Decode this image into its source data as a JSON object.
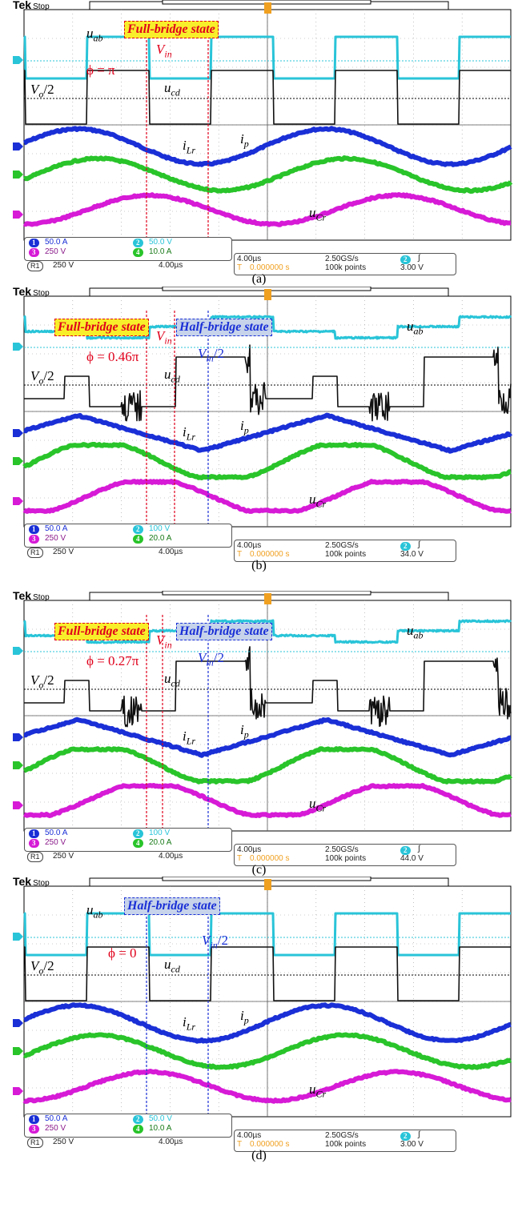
{
  "chart_data": [
    {
      "type": "line",
      "panel": "(a)",
      "title": "",
      "header": {
        "brand": "Tek",
        "status": "Stop"
      },
      "state_boxes": [
        "Full-bridge state"
      ],
      "annotations": {
        "uab": "u",
        "uab_sub": "ab",
        "ucd": "u",
        "ucd_sub": "cd",
        "vo": "V",
        "vo_sub": "o",
        "vo_tail": "/2",
        "vin": "V",
        "vin_sub": "in",
        "vin_tail": "",
        "phi": "ϕ = π",
        "ilr": "i",
        "ilr_sub": "Lr",
        "ip": "i",
        "ip_sub": "p",
        "ucr": "u",
        "ucr_sub": "Cr"
      },
      "series": [
        {
          "name": "u_ab",
          "channel": "2",
          "color": "#29c4d8",
          "scale": "50.0 V"
        },
        {
          "name": "u_cd",
          "channel": "R1",
          "color": "#111111",
          "scale": "250 V"
        },
        {
          "name": "i_p",
          "channel": "1",
          "color": "#1a2fd6",
          "scale": "50.0 A"
        },
        {
          "name": "i_Lr",
          "channel": "4",
          "color": "#29c42a",
          "scale": "10.0 A"
        },
        {
          "name": "u_Cr",
          "channel": "3",
          "color": "#d61ad6",
          "scale": "250 V"
        }
      ],
      "status": {
        "ch1": "50.0 A",
        "ch2": "50.0 V",
        "ch3": "250 V",
        "ch4": "10.0 A",
        "r1": "250 V",
        "r1_time": "4.00µs",
        "timebase": "4.00µs",
        "sample": "2.50GS/s",
        "trig_ch": "2",
        "trig_sym": "∫",
        "offset": "0.000000 s",
        "points": "100k points",
        "trig_level": "3.00 V"
      },
      "phase": 1.0,
      "mode": "full"
    },
    {
      "type": "line",
      "panel": "(b)",
      "title": "",
      "header": {
        "brand": "Tek",
        "status": "Stop"
      },
      "state_boxes": [
        "Full-bridge state",
        "Half-bridge state"
      ],
      "annotations": {
        "uab": "u",
        "uab_sub": "ab",
        "ucd": "u",
        "ucd_sub": "cd",
        "vo": "V",
        "vo_sub": "o",
        "vo_tail": "/2",
        "vin": "V",
        "vin_sub": "in",
        "vin_tail": "",
        "vin2": "V",
        "vin2_sub": "in",
        "vin2_tail": "/2",
        "phi": "ϕ = 0.46π",
        "ilr": "i",
        "ilr_sub": "Lr",
        "ip": "i",
        "ip_sub": "p",
        "ucr": "u",
        "ucr_sub": "Cr"
      },
      "series": [
        {
          "name": "u_ab",
          "channel": "2",
          "color": "#29c4d8",
          "scale": "100 V"
        },
        {
          "name": "u_cd",
          "channel": "R1",
          "color": "#111111",
          "scale": "250 V"
        },
        {
          "name": "i_p",
          "channel": "1",
          "color": "#1a2fd6",
          "scale": "50.0 A"
        },
        {
          "name": "i_Lr",
          "channel": "4",
          "color": "#29c42a",
          "scale": "20.0 A"
        },
        {
          "name": "u_Cr",
          "channel": "3",
          "color": "#d61ad6",
          "scale": "250 V"
        }
      ],
      "status": {
        "ch1": "50.0 A",
        "ch2": "100 V",
        "ch3": "250 V",
        "ch4": "20.0 A",
        "r1": "250 V",
        "r1_time": "4.00µs",
        "timebase": "4.00µs",
        "sample": "2.50GS/s",
        "trig_ch": "2",
        "trig_sym": "∫",
        "offset": "0.000000 s",
        "points": "100k points",
        "trig_level": "34.0 V"
      },
      "phase": 0.46,
      "mode": "mixed"
    },
    {
      "type": "line",
      "panel": "(c)",
      "title": "",
      "header": {
        "brand": "Tek",
        "status": "Stop"
      },
      "state_boxes": [
        "Full-bridge state",
        "Half-bridge state"
      ],
      "annotations": {
        "uab": "u",
        "uab_sub": "ab",
        "ucd": "u",
        "ucd_sub": "cd",
        "vo": "V",
        "vo_sub": "o",
        "vo_tail": "/2",
        "vin": "V",
        "vin_sub": "in",
        "vin_tail": "",
        "vin2": "V",
        "vin2_sub": "in",
        "vin2_tail": "/2",
        "phi": "ϕ = 0.27π",
        "ilr": "i",
        "ilr_sub": "Lr",
        "ip": "i",
        "ip_sub": "p",
        "ucr": "u",
        "ucr_sub": "Cr"
      },
      "series": [
        {
          "name": "u_ab",
          "channel": "2",
          "color": "#29c4d8",
          "scale": "100 V"
        },
        {
          "name": "u_cd",
          "channel": "R1",
          "color": "#111111",
          "scale": "250 V"
        },
        {
          "name": "i_p",
          "channel": "1",
          "color": "#1a2fd6",
          "scale": "50.0 A"
        },
        {
          "name": "i_Lr",
          "channel": "4",
          "color": "#29c42a",
          "scale": "20.0 A"
        },
        {
          "name": "u_Cr",
          "channel": "3",
          "color": "#d61ad6",
          "scale": "250 V"
        }
      ],
      "status": {
        "ch1": "50.0 A",
        "ch2": "100 V",
        "ch3": "250 V",
        "ch4": "20.0 A",
        "r1": "250 V",
        "r1_time": "4.00µs",
        "timebase": "4.00µs",
        "sample": "2.50GS/s",
        "trig_ch": "2",
        "trig_sym": "∫",
        "offset": "0.000000 s",
        "points": "100k points",
        "trig_level": "44.0 V"
      },
      "phase": 0.27,
      "mode": "mixed"
    },
    {
      "type": "line",
      "panel": "(d)",
      "title": "",
      "header": {
        "brand": "Tek",
        "status": "Stop"
      },
      "state_boxes": [
        "Half-bridge state"
      ],
      "annotations": {
        "uab": "u",
        "uab_sub": "ab",
        "ucd": "u",
        "ucd_sub": "cd",
        "vo": "V",
        "vo_sub": "o",
        "vo_tail": "/2",
        "vin": "V",
        "vin_sub": "in",
        "vin_tail": "/2",
        "phi": "ϕ = 0",
        "ilr": "i",
        "ilr_sub": "Lr",
        "ip": "i",
        "ip_sub": "p",
        "ucr": "u",
        "ucr_sub": "Cr"
      },
      "series": [
        {
          "name": "u_ab",
          "channel": "2",
          "color": "#29c4d8",
          "scale": "50.0 V"
        },
        {
          "name": "u_cd",
          "channel": "R1",
          "color": "#111111",
          "scale": "250 V"
        },
        {
          "name": "i_p",
          "channel": "1",
          "color": "#1a2fd6",
          "scale": "50.0 A"
        },
        {
          "name": "i_Lr",
          "channel": "4",
          "color": "#29c42a",
          "scale": "10.0 A"
        },
        {
          "name": "u_Cr",
          "channel": "3",
          "color": "#d61ad6",
          "scale": "250 V"
        }
      ],
      "status": {
        "ch1": "50.0 A",
        "ch2": "50.0 V",
        "ch3": "250 V",
        "ch4": "10.0 A",
        "r1": "250 V",
        "r1_time": "4.00µs",
        "timebase": "4.00µs",
        "sample": "2.50GS/s",
        "trig_ch": "2",
        "trig_sym": "∫",
        "offset": "0.000000 s",
        "points": "100k points",
        "trig_level": "3.00 V"
      },
      "phase": 0.0,
      "mode": "half"
    }
  ]
}
